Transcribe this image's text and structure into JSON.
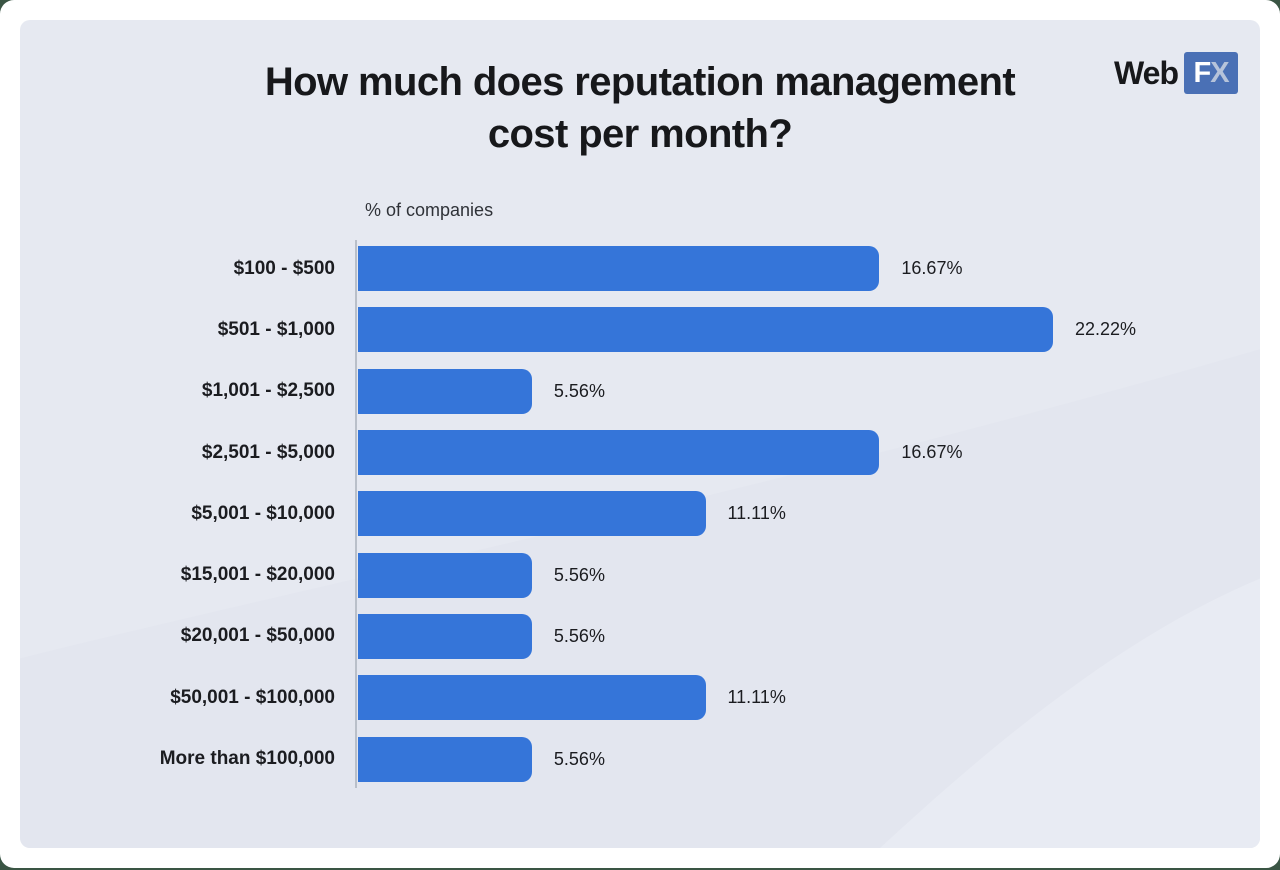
{
  "page": {
    "title_line1": "How much does reputation management",
    "title_line2": "cost per month?"
  },
  "logo": {
    "text": "Web",
    "badge_f": "F",
    "badge_x": "X"
  },
  "colors": {
    "bar": "#3575d9",
    "panel_background": "#e6e9f1",
    "card_background": "#ffffff",
    "title_text": "#17181b",
    "axis_line": "#b9bfc9",
    "logo_badge_background": "#4a70b5"
  },
  "chart_data": {
    "type": "bar",
    "orientation": "horizontal",
    "title": "How much does reputation management cost per month?",
    "axis_title": "% of companies",
    "xlabel": "% of companies",
    "ylabel": "",
    "xlim": [
      0,
      22.22
    ],
    "grid": false,
    "legend": false,
    "categories": [
      "$100 - $500",
      "$501 - $1,000",
      "$1,001 - $2,500",
      "$2,501 - $5,000",
      "$5,001 - $10,000",
      "$15,001 - $20,000",
      "$20,001 - $50,000",
      "$50,001 - $100,000",
      "More than $100,000"
    ],
    "values": [
      16.67,
      22.22,
      5.56,
      16.67,
      11.11,
      5.56,
      5.56,
      11.11,
      5.56
    ],
    "value_labels": [
      "16.67%",
      "22.22%",
      "5.56%",
      "16.67%",
      "11.11%",
      "5.56%",
      "5.56%",
      "11.11%",
      "5.56%"
    ]
  }
}
